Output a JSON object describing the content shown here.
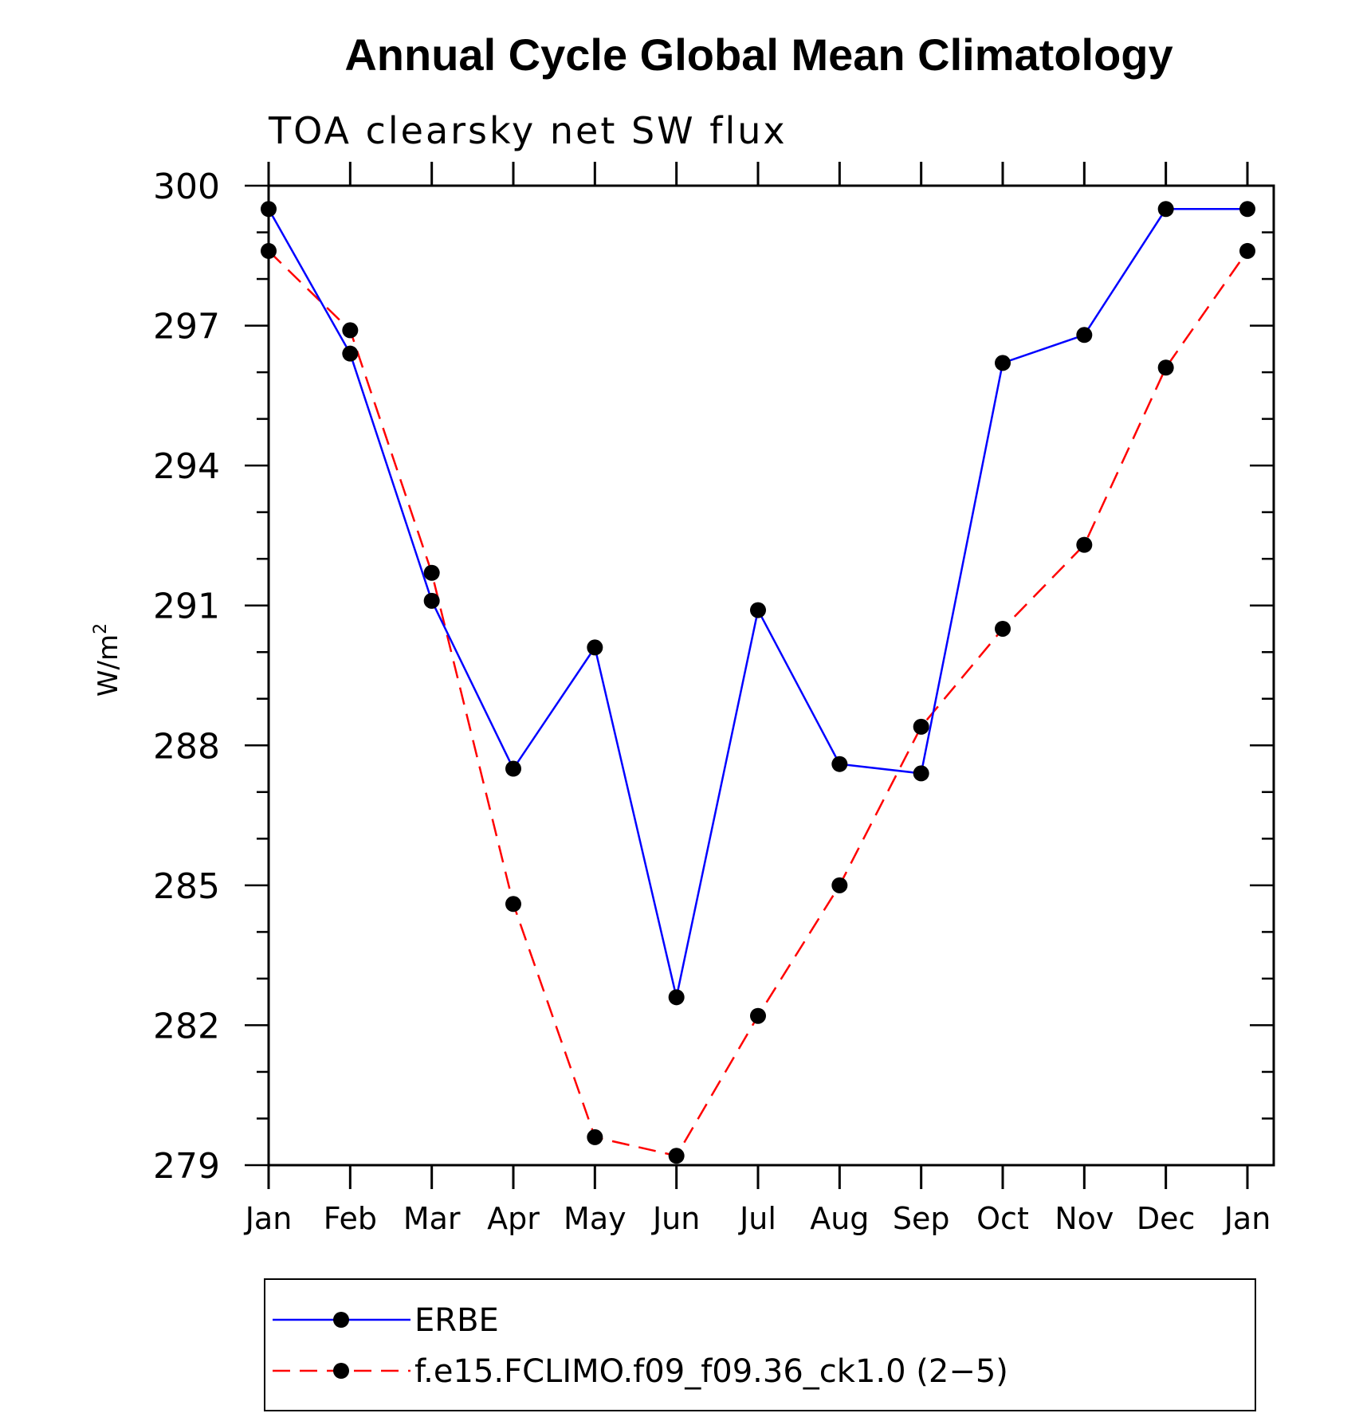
{
  "chart_data": {
    "type": "line",
    "title": "Annual Cycle Global Mean Climatology",
    "subtitle": "TOA clearsky net SW flux",
    "ylabel": "W/m",
    "ylabel_sup": "2",
    "xlabel": "",
    "categories": [
      "Jan",
      "Feb",
      "Mar",
      "Apr",
      "May",
      "Jun",
      "Jul",
      "Aug",
      "Sep",
      "Oct",
      "Nov",
      "Dec",
      "Jan"
    ],
    "ylim": [
      279,
      300
    ],
    "yticks": [
      279,
      282,
      285,
      288,
      291,
      294,
      297,
      300
    ],
    "ytick_labels": [
      "279",
      "282",
      "285",
      "288",
      "291",
      "294",
      "297",
      "300"
    ],
    "grid": false,
    "legend_position": "bottom",
    "series": [
      {
        "name": "ERBE",
        "color": "#0000ff",
        "line_style": "solid",
        "marker": "circle",
        "values": [
          299.5,
          296.4,
          291.1,
          287.5,
          290.1,
          282.6,
          290.9,
          287.6,
          287.4,
          296.2,
          296.8,
          299.5,
          299.5
        ]
      },
      {
        "name": "f.e15.FCLIMO.f09_f09.36_ck1.0 (2−5)",
        "color": "#ff0000",
        "line_style": "dashed",
        "marker": "circle",
        "values": [
          298.6,
          296.9,
          291.7,
          284.6,
          279.6,
          279.2,
          282.2,
          285.0,
          288.4,
          290.5,
          292.3,
          296.1,
          298.6
        ]
      }
    ]
  }
}
